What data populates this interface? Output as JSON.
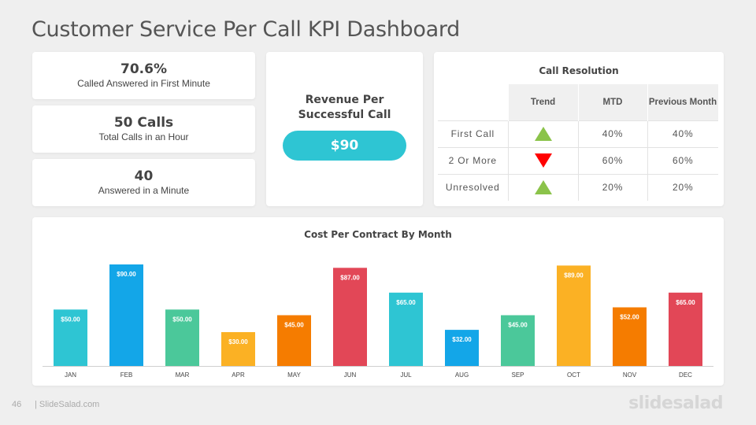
{
  "title": "Customer Service Per Call KPI Dashboard",
  "kpis": [
    {
      "value": "70.6%",
      "label": "Called Answered in First Minute"
    },
    {
      "value": "50 Calls",
      "label": "Total Calls in an Hour"
    },
    {
      "value": "40",
      "label": "Answered in a Minute"
    }
  ],
  "revenue": {
    "title": "Revenue Per Successful Call",
    "value": "$90"
  },
  "resolution": {
    "title": "Call Resolution",
    "headers": [
      "Trend",
      "MTD",
      "Previous Month"
    ],
    "rows": [
      {
        "label": "First Call",
        "trend": "up",
        "mtd": "40%",
        "prev": "40%"
      },
      {
        "label": "2 Or More",
        "trend": "down",
        "mtd": "60%",
        "prev": "60%"
      },
      {
        "label": "Unresolved",
        "trend": "up",
        "mtd": "20%",
        "prev": "20%"
      }
    ],
    "colors": {
      "up": "#8bc34a",
      "down": "#ff0000"
    }
  },
  "chart_data": {
    "type": "bar",
    "title": "Cost Per Contract By Month",
    "categories": [
      "JAN",
      "FEB",
      "MAR",
      "APR",
      "MAY",
      "JUN",
      "JUL",
      "AUG",
      "SEP",
      "OCT",
      "NOV",
      "DEC"
    ],
    "values": [
      50,
      90,
      50,
      30,
      45,
      87,
      65,
      32,
      45,
      89,
      52,
      65
    ],
    "labels": [
      "$50.00",
      "$90.00",
      "$50.00",
      "$30.00",
      "$45.00",
      "$87.00",
      "$65.00",
      "$32.00",
      "$45.00",
      "$89.00",
      "$52.00",
      "$65.00"
    ],
    "colors": [
      "#2ec5d3",
      "#13a6e8",
      "#4bc89a",
      "#fbb124",
      "#f57c00",
      "#e24757",
      "#2ec5d3",
      "#13a6e8",
      "#4bc89a",
      "#fbb124",
      "#f57c00",
      "#e24757"
    ],
    "ylim": [
      0,
      90
    ],
    "grid": false,
    "legend": "none"
  },
  "footer": {
    "page": "46",
    "site": "| SlideSalad.com",
    "brand": "slidesalad"
  }
}
